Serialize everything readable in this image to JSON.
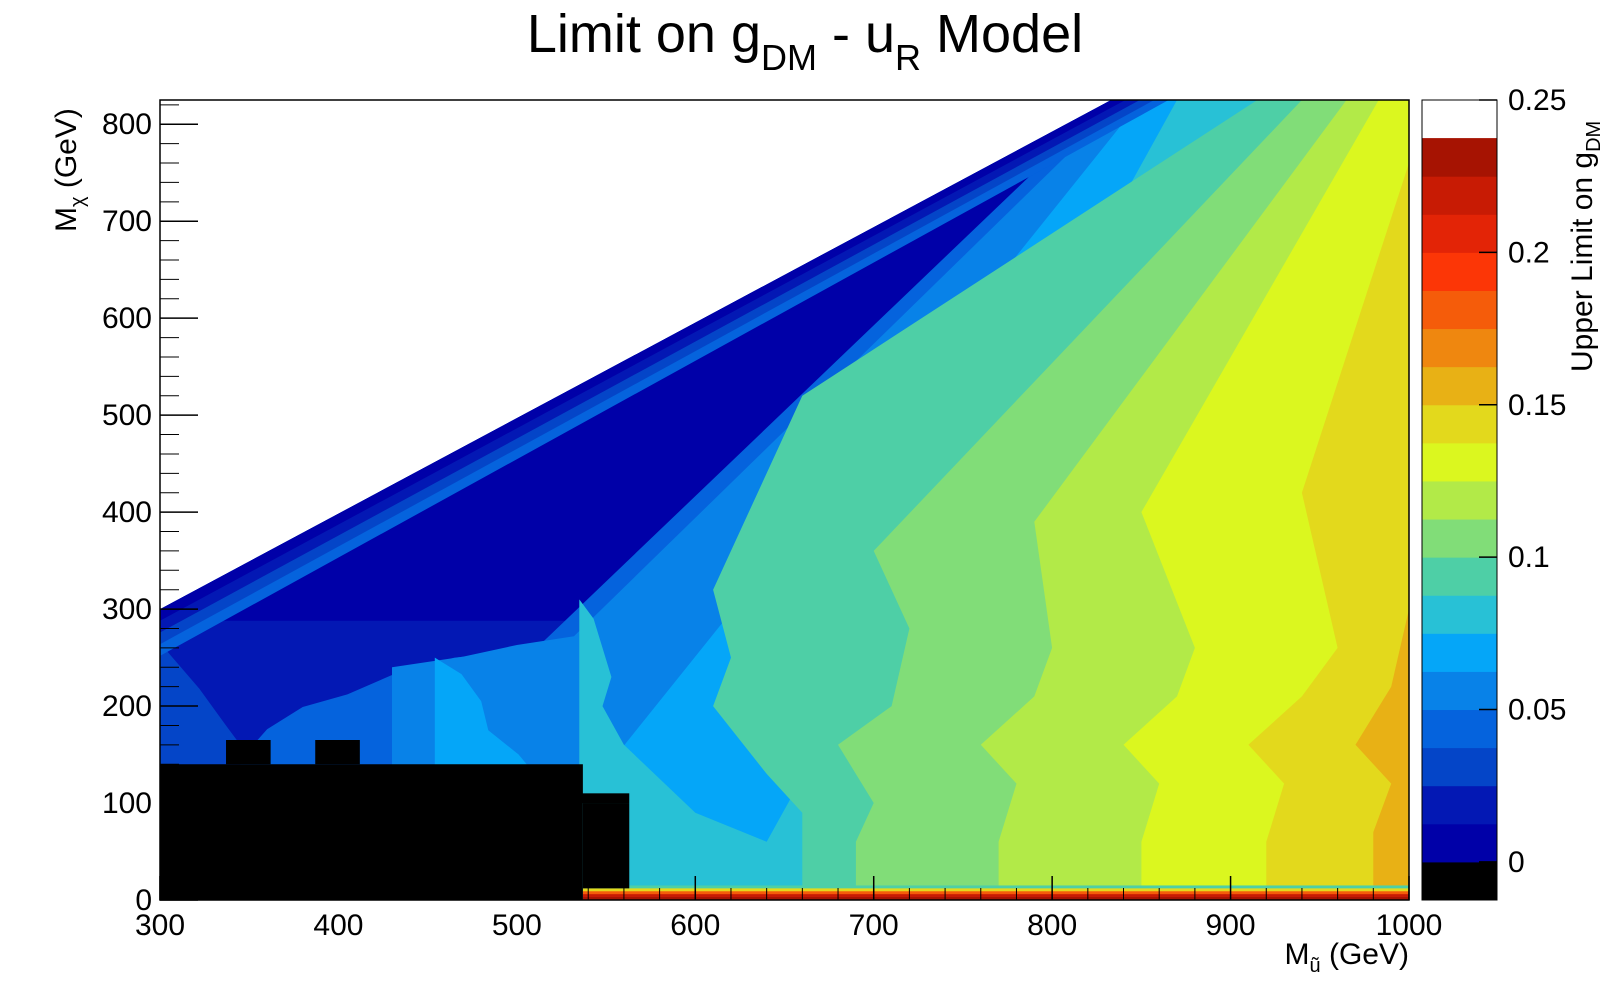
{
  "chart_data": {
    "type": "heatmap",
    "title": {
      "main": "Limit on g",
      "sub1": "DM",
      "mid": " - u",
      "sub2": "R",
      "end": " Model"
    },
    "xlabel": {
      "main": "M",
      "sub": "ũ",
      "end": " (GeV)"
    },
    "ylabel": {
      "main": "M",
      "sub": "χ",
      "end": " (GeV)"
    },
    "zlabel": {
      "main": "Upper Limit on g",
      "sub": "DM"
    },
    "xlim": [
      300,
      1000
    ],
    "ylim": [
      0,
      825
    ],
    "zlim": [
      0,
      0.25
    ],
    "x_ticks": [
      {
        "value": 300,
        "label": "300"
      },
      {
        "value": 400,
        "label": "400"
      },
      {
        "value": 500,
        "label": "500"
      },
      {
        "value": 600,
        "label": "600"
      },
      {
        "value": 700,
        "label": "700"
      },
      {
        "value": 800,
        "label": "800"
      },
      {
        "value": 900,
        "label": "900"
      },
      {
        "value": 1000,
        "label": "1000"
      }
    ],
    "y_ticks": [
      {
        "value": 0,
        "label": "0"
      },
      {
        "value": 100,
        "label": "100"
      },
      {
        "value": 200,
        "label": "200"
      },
      {
        "value": 300,
        "label": "300"
      },
      {
        "value": 400,
        "label": "400"
      },
      {
        "value": 500,
        "label": "500"
      },
      {
        "value": 600,
        "label": "600"
      },
      {
        "value": 700,
        "label": "700"
      },
      {
        "value": 800,
        "label": "800"
      }
    ],
    "z_ticks": [
      {
        "value": 0,
        "label": "0"
      },
      {
        "value": 0.05,
        "label": "0.05"
      },
      {
        "value": 0.1,
        "label": "0.1"
      },
      {
        "value": 0.15,
        "label": "0.15"
      },
      {
        "value": 0.2,
        "label": "0.2"
      },
      {
        "value": 0.25,
        "label": "0.25"
      }
    ],
    "levels": [
      {
        "from": -0.0125,
        "to": 0,
        "color": "#000000"
      },
      {
        "from": 0,
        "to": 0.0125,
        "color": "#0000A8"
      },
      {
        "from": 0.0125,
        "to": 0.025,
        "color": "#0318B4"
      },
      {
        "from": 0.025,
        "to": 0.0375,
        "color": "#0445C8"
      },
      {
        "from": 0.0375,
        "to": 0.05,
        "color": "#0563DD"
      },
      {
        "from": 0.05,
        "to": 0.0625,
        "color": "#0882E8"
      },
      {
        "from": 0.0625,
        "to": 0.075,
        "color": "#05A6F8"
      },
      {
        "from": 0.075,
        "to": 0.0875,
        "color": "#28C1D6"
      },
      {
        "from": 0.0875,
        "to": 0.1,
        "color": "#4ECFA6"
      },
      {
        "from": 0.1,
        "to": 0.1125,
        "color": "#81DD78"
      },
      {
        "from": 0.1125,
        "to": 0.125,
        "color": "#B2EA48"
      },
      {
        "from": 0.125,
        "to": 0.1375,
        "color": "#DBF71F"
      },
      {
        "from": 0.1375,
        "to": 0.15,
        "color": "#E3D91C"
      },
      {
        "from": 0.15,
        "to": 0.1625,
        "color": "#E8B115"
      },
      {
        "from": 0.1625,
        "to": 0.175,
        "color": "#EF870F"
      },
      {
        "from": 0.175,
        "to": 0.1875,
        "color": "#F55C0A"
      },
      {
        "from": 0.1875,
        "to": 0.2,
        "color": "#FC3606"
      },
      {
        "from": 0.2,
        "to": 0.2125,
        "color": "#E32406"
      },
      {
        "from": 0.2125,
        "to": 0.225,
        "color": "#C81B04"
      },
      {
        "from": 0.225,
        "to": 0.2375,
        "color": "#A61302"
      }
    ],
    "boundary": [
      [
        300,
        300
      ],
      [
        833,
        825
      ],
      [
        1000,
        825
      ],
      [
        1000,
        0
      ],
      [
        300,
        0
      ]
    ],
    "contours": [
      {
        "level": 0.0125,
        "points": [
          [
            300,
            288
          ],
          [
            1000,
            288
          ]
        ]
      },
      {
        "level": 0.025,
        "points": [
          [
            300,
            265
          ],
          [
            322,
            218
          ],
          [
            337,
            180
          ],
          [
            345,
            160
          ]
        ]
      },
      {
        "level": 0.0375,
        "points": [
          [
            345,
            145
          ],
          [
            360,
            176
          ],
          [
            380,
            199
          ],
          [
            405,
            212
          ],
          [
            430,
            232
          ],
          [
            465,
            250
          ],
          [
            510,
            258
          ],
          [
            832,
            825
          ]
        ]
      },
      {
        "level": 0.05,
        "points": [
          [
            430,
            240
          ],
          [
            470,
            251
          ],
          [
            500,
            263
          ],
          [
            532,
            272
          ],
          [
            840,
            825
          ]
        ]
      },
      {
        "level": 0.0625,
        "points": [
          [
            454,
            250
          ],
          [
            469,
            233
          ],
          [
            480,
            205
          ],
          [
            484,
            175
          ],
          [
            501,
            150
          ],
          [
            510,
            130
          ],
          [
            532,
            95
          ],
          [
            850,
            825
          ]
        ]
      },
      {
        "level": 0.075,
        "points": [
          [
            535,
            310
          ],
          [
            543,
            290
          ],
          [
            548,
            260
          ],
          [
            553,
            230
          ],
          [
            548,
            200
          ],
          [
            560,
            160
          ],
          [
            600,
            90
          ],
          [
            640,
            60
          ],
          [
            870,
            825
          ]
        ]
      },
      {
        "level": 0.0875,
        "points": [
          [
            660,
            90
          ],
          [
            640,
            130
          ],
          [
            610,
            200
          ],
          [
            620,
            250
          ],
          [
            610,
            320
          ],
          [
            660,
            520
          ],
          [
            915,
            825
          ]
        ]
      },
      {
        "level": 0.1,
        "points": [
          [
            690,
            60
          ],
          [
            700,
            100
          ],
          [
            680,
            160
          ],
          [
            710,
            200
          ],
          [
            720,
            280
          ],
          [
            700,
            360
          ],
          [
            940,
            825
          ]
        ]
      },
      {
        "level": 0.1125,
        "points": [
          [
            770,
            60
          ],
          [
            780,
            120
          ],
          [
            760,
            160
          ],
          [
            790,
            210
          ],
          [
            800,
            260
          ],
          [
            790,
            390
          ],
          [
            965,
            825
          ]
        ]
      },
      {
        "level": 0.125,
        "points": [
          [
            850,
            60
          ],
          [
            860,
            120
          ],
          [
            840,
            160
          ],
          [
            870,
            210
          ],
          [
            880,
            260
          ],
          [
            850,
            400
          ],
          [
            983,
            825
          ]
        ]
      },
      {
        "level": 0.1375,
        "points": [
          [
            920,
            60
          ],
          [
            930,
            120
          ],
          [
            910,
            160
          ],
          [
            940,
            210
          ],
          [
            960,
            260
          ],
          [
            940,
            420
          ],
          [
            1000,
            760
          ]
        ]
      },
      {
        "level": 0.15,
        "points": [
          [
            980,
            70
          ],
          [
            990,
            120
          ],
          [
            970,
            160
          ],
          [
            990,
            220
          ],
          [
            1000,
            300
          ]
        ]
      },
      {
        "level": 0.1625,
        "points": [
          [
            1000,
            80
          ],
          [
            1000,
            120
          ]
        ]
      }
    ],
    "mask_blocks": [
      [
        300,
        0,
        537,
        140
      ],
      [
        337,
        140,
        362,
        165
      ],
      [
        387,
        140,
        412,
        165
      ],
      [
        537,
        12,
        563,
        100
      ],
      [
        513,
        100,
        563,
        110
      ]
    ],
    "strip": {
      "y_range": [
        0,
        15
      ],
      "x_range": [
        537,
        1000
      ],
      "values": [
        0.09,
        0.14,
        0.18,
        0.22,
        0.238
      ]
    }
  }
}
